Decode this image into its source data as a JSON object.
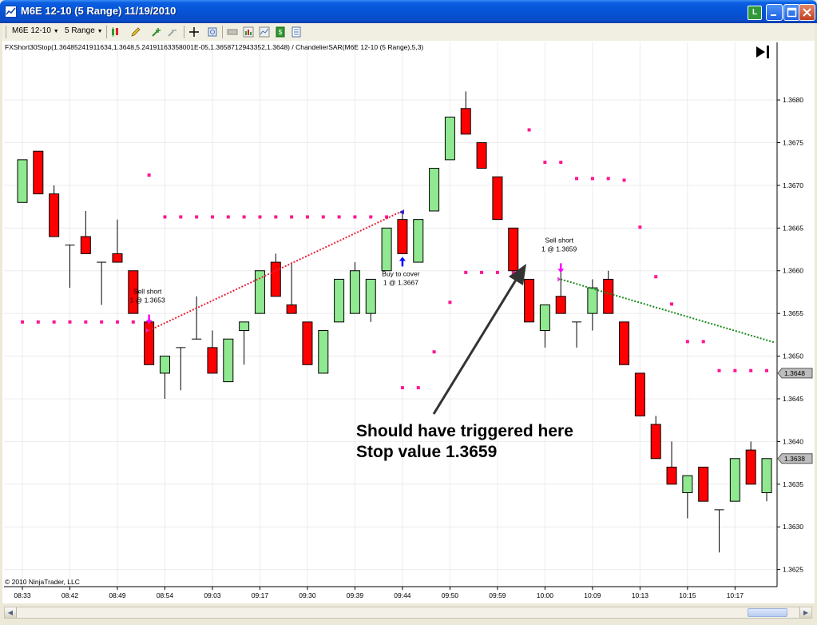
{
  "window": {
    "title": "M6E 12-10 (5 Range)  11/19/2010",
    "badge_letter": "L"
  },
  "toolbar": {
    "instrument": "M6E 12-10",
    "period": "5 Range"
  },
  "indicator_label": "FXShort30Stop(1.36485241911634,1.3648,5.24191163358001E-05,1.3658712943352,1.3648) / ChandelierSAR(M6E 12-10 (5 Range),5,3)",
  "copyright": "© 2010 NinjaTrader, LLC",
  "annotation": {
    "line1": "Should have triggered here",
    "line2": "Stop value 1.3659"
  },
  "trade_markers": [
    {
      "label": "Sell short",
      "detail": "1 @ 1.3653",
      "direction": "down",
      "bar": 8
    },
    {
      "label": "Buy to cover",
      "detail": "1 @ 1.3667",
      "direction": "up",
      "bar": 24
    },
    {
      "label": "Sell short",
      "detail": "1 @ 1.3659",
      "direction": "down",
      "bar": 34
    }
  ],
  "colors": {
    "up_candle": "#90E890",
    "down_candle": "#FF0000",
    "sar_dots": "#FF1493",
    "trade_line_red": "#E8203A",
    "trade_line_green": "#1A8A1A",
    "arrow": "#333333",
    "marker_down": "#FF00FF",
    "marker_up": "#0000FF"
  },
  "chart_data": {
    "type": "candlestick",
    "y_ticks": [
      "1.3625",
      "1.3630",
      "1.3635",
      "1.3640",
      "1.3645",
      "1.3650",
      "1.3655",
      "1.3660",
      "1.3665",
      "1.3670",
      "1.3675",
      "1.3680"
    ],
    "ylim": [
      1.3623,
      1.3686
    ],
    "x_labels": [
      {
        "bar": 0,
        "label": "08:33"
      },
      {
        "bar": 3,
        "label": "08:42"
      },
      {
        "bar": 6,
        "label": "08:49"
      },
      {
        "bar": 9,
        "label": "08:54"
      },
      {
        "bar": 12,
        "label": "09:03"
      },
      {
        "bar": 15,
        "label": "09:17"
      },
      {
        "bar": 18,
        "label": "09:30"
      },
      {
        "bar": 21,
        "label": "09:39"
      },
      {
        "bar": 24,
        "label": "09:44"
      },
      {
        "bar": 27,
        "label": "09:50"
      },
      {
        "bar": 30,
        "label": "09:59"
      },
      {
        "bar": 33,
        "label": "10:00"
      },
      {
        "bar": 36,
        "label": "10:09"
      },
      {
        "bar": 39,
        "label": "10:13"
      },
      {
        "bar": 42,
        "label": "10:15"
      },
      {
        "bar": 45,
        "label": "10:17"
      }
    ],
    "price_flags": [
      {
        "value": 1.3648,
        "label": "1.3648"
      },
      {
        "value": 1.3638,
        "label": "1.3638"
      }
    ],
    "candles": [
      {
        "o": 1.3668,
        "h": 1.3673,
        "l": 1.3668,
        "c": 1.3673
      },
      {
        "o": 1.3674,
        "h": 1.3674,
        "l": 1.3669,
        "c": 1.3669
      },
      {
        "o": 1.3669,
        "h": 1.367,
        "l": 1.3664,
        "c": 1.3664
      },
      {
        "o": 1.3663,
        "h": 1.3663,
        "l": 1.3658,
        "c": 1.3663
      },
      {
        "o": 1.3664,
        "h": 1.3667,
        "l": 1.3662,
        "c": 1.3662
      },
      {
        "o": 1.3661,
        "h": 1.3661,
        "l": 1.3656,
        "c": 1.3661
      },
      {
        "o": 1.3662,
        "h": 1.3666,
        "l": 1.3661,
        "c": 1.3661
      },
      {
        "o": 1.366,
        "h": 1.366,
        "l": 1.3655,
        "c": 1.3655
      },
      {
        "o": 1.3654,
        "h": 1.3654,
        "l": 1.3649,
        "c": 1.3649
      },
      {
        "o": 1.3648,
        "h": 1.365,
        "l": 1.3645,
        "c": 1.365
      },
      {
        "o": 1.3651,
        "h": 1.3651,
        "l": 1.3646,
        "c": 1.3651
      },
      {
        "o": 1.3652,
        "h": 1.3657,
        "l": 1.3652,
        "c": 1.3652
      },
      {
        "o": 1.3651,
        "h": 1.3653,
        "l": 1.3648,
        "c": 1.3648
      },
      {
        "o": 1.3647,
        "h": 1.3652,
        "l": 1.3647,
        "c": 1.3652
      },
      {
        "o": 1.3653,
        "h": 1.3654,
        "l": 1.3649,
        "c": 1.3654
      },
      {
        "o": 1.3655,
        "h": 1.366,
        "l": 1.3655,
        "c": 1.366
      },
      {
        "o": 1.3661,
        "h": 1.3662,
        "l": 1.3657,
        "c": 1.3657
      },
      {
        "o": 1.3656,
        "h": 1.3661,
        "l": 1.3655,
        "c": 1.3655
      },
      {
        "o": 1.3654,
        "h": 1.3654,
        "l": 1.3649,
        "c": 1.3649
      },
      {
        "o": 1.3648,
        "h": 1.3653,
        "l": 1.3648,
        "c": 1.3653
      },
      {
        "o": 1.3654,
        "h": 1.3659,
        "l": 1.3654,
        "c": 1.3659
      },
      {
        "o": 1.3655,
        "h": 1.3661,
        "l": 1.3655,
        "c": 1.366
      },
      {
        "o": 1.3655,
        "h": 1.3659,
        "l": 1.3654,
        "c": 1.3659
      },
      {
        "o": 1.366,
        "h": 1.3665,
        "l": 1.366,
        "c": 1.3665
      },
      {
        "o": 1.3666,
        "h": 1.3667,
        "l": 1.3662,
        "c": 1.3662
      },
      {
        "o": 1.3661,
        "h": 1.3666,
        "l": 1.3661,
        "c": 1.3666
      },
      {
        "o": 1.3667,
        "h": 1.3672,
        "l": 1.3667,
        "c": 1.3672
      },
      {
        "o": 1.3673,
        "h": 1.3678,
        "l": 1.3673,
        "c": 1.3678
      },
      {
        "o": 1.3679,
        "h": 1.3681,
        "l": 1.3676,
        "c": 1.3676
      },
      {
        "o": 1.3675,
        "h": 1.3675,
        "l": 1.3672,
        "c": 1.3672
      },
      {
        "o": 1.3671,
        "h": 1.3671,
        "l": 1.3666,
        "c": 1.3666
      },
      {
        "o": 1.3665,
        "h": 1.3665,
        "l": 1.366,
        "c": 1.366
      },
      {
        "o": 1.3659,
        "h": 1.3659,
        "l": 1.3654,
        "c": 1.3654
      },
      {
        "o": 1.3653,
        "h": 1.3656,
        "l": 1.3651,
        "c": 1.3656
      },
      {
        "o": 1.3657,
        "h": 1.366,
        "l": 1.3655,
        "c": 1.3655
      },
      {
        "o": 1.3654,
        "h": 1.3654,
        "l": 1.3651,
        "c": 1.3654
      },
      {
        "o": 1.3655,
        "h": 1.3659,
        "l": 1.3653,
        "c": 1.3658
      },
      {
        "o": 1.3659,
        "h": 1.366,
        "l": 1.3655,
        "c": 1.3655
      },
      {
        "o": 1.3654,
        "h": 1.3654,
        "l": 1.3649,
        "c": 1.3649
      },
      {
        "o": 1.3648,
        "h": 1.3648,
        "l": 1.3643,
        "c": 1.3643
      },
      {
        "o": 1.3642,
        "h": 1.3643,
        "l": 1.3638,
        "c": 1.3638
      },
      {
        "o": 1.3637,
        "h": 1.364,
        "l": 1.3635,
        "c": 1.3635
      },
      {
        "o": 1.3634,
        "h": 1.3636,
        "l": 1.3631,
        "c": 1.3636
      },
      {
        "o": 1.3637,
        "h": 1.3637,
        "l": 1.3633,
        "c": 1.3633
      },
      {
        "o": 1.3632,
        "h": 1.3632,
        "l": 1.3627,
        "c": 1.3632
      },
      {
        "o": 1.3633,
        "h": 1.3638,
        "l": 1.3633,
        "c": 1.3638
      },
      {
        "o": 1.3639,
        "h": 1.364,
        "l": 1.3635,
        "c": 1.3635
      },
      {
        "o": 1.3634,
        "h": 1.3638,
        "l": 1.3633,
        "c": 1.3638
      }
    ],
    "sar_dots": [
      {
        "bar": 0,
        "v": 1.3654
      },
      {
        "bar": 1,
        "v": 1.3654
      },
      {
        "bar": 2,
        "v": 1.3654
      },
      {
        "bar": 3,
        "v": 1.3654
      },
      {
        "bar": 4,
        "v": 1.3654
      },
      {
        "bar": 5,
        "v": 1.3654
      },
      {
        "bar": 6,
        "v": 1.3654
      },
      {
        "bar": 7,
        "v": 1.3654
      },
      {
        "bar": 8,
        "v": 1.36712
      },
      {
        "bar": 9,
        "v": 1.36663
      },
      {
        "bar": 10,
        "v": 1.36663
      },
      {
        "bar": 11,
        "v": 1.36663
      },
      {
        "bar": 12,
        "v": 1.36663
      },
      {
        "bar": 13,
        "v": 1.36663
      },
      {
        "bar": 14,
        "v": 1.36663
      },
      {
        "bar": 15,
        "v": 1.36663
      },
      {
        "bar": 16,
        "v": 1.36663
      },
      {
        "bar": 17,
        "v": 1.36663
      },
      {
        "bar": 18,
        "v": 1.36663
      },
      {
        "bar": 19,
        "v": 1.36663
      },
      {
        "bar": 20,
        "v": 1.36663
      },
      {
        "bar": 21,
        "v": 1.36663
      },
      {
        "bar": 22,
        "v": 1.36663
      },
      {
        "bar": 23,
        "v": 1.36663
      },
      {
        "bar": 24,
        "v": 1.36463
      },
      {
        "bar": 25,
        "v": 1.36463
      },
      {
        "bar": 26,
        "v": 1.36505
      },
      {
        "bar": 27,
        "v": 1.36563
      },
      {
        "bar": 28,
        "v": 1.36598
      },
      {
        "bar": 29,
        "v": 1.36598
      },
      {
        "bar": 30,
        "v": 1.36598
      },
      {
        "bar": 31,
        "v": 1.36598
      },
      {
        "bar": 32,
        "v": 1.36765
      },
      {
        "bar": 33,
        "v": 1.36727
      },
      {
        "bar": 34,
        "v": 1.36727
      },
      {
        "bar": 35,
        "v": 1.36708
      },
      {
        "bar": 36,
        "v": 1.36708
      },
      {
        "bar": 37,
        "v": 1.36708
      },
      {
        "bar": 38,
        "v": 1.36706
      },
      {
        "bar": 39,
        "v": 1.36651
      },
      {
        "bar": 40,
        "v": 1.36593
      },
      {
        "bar": 41,
        "v": 1.36561
      },
      {
        "bar": 42,
        "v": 1.36517
      },
      {
        "bar": 43,
        "v": 1.36517
      },
      {
        "bar": 44,
        "v": 1.36483
      },
      {
        "bar": 45,
        "v": 1.36483
      },
      {
        "bar": 46,
        "v": 1.36483
      },
      {
        "bar": 47,
        "v": 1.36483
      }
    ],
    "trade_lines": [
      {
        "from_bar": 8,
        "from_v": 1.3653,
        "to_bar": 24,
        "to_v": 1.3667,
        "color": "red"
      },
      {
        "from_bar": 34,
        "from_v": 1.3659,
        "to_bar": 47.5,
        "to_v": 1.36516,
        "color": "green"
      }
    ]
  }
}
